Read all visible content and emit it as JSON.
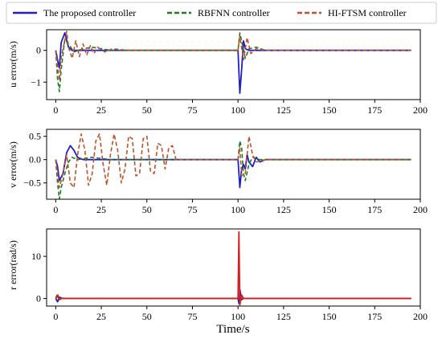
{
  "chart_data": [
    {
      "type": "line",
      "ylabel": "u error(m/s)",
      "xlabel": "",
      "xlim": [
        -5,
        200
      ],
      "ylim": [
        -1.55,
        0.65
      ],
      "xticks": [
        0,
        25,
        50,
        75,
        100,
        125,
        150,
        175,
        200
      ],
      "yticks": [
        -1,
        0
      ],
      "series": [
        {
          "name": "The proposed controller",
          "color": "#1f1fc8",
          "dash": "solid",
          "key": "u_proposed",
          "points": [
            [
              0,
              0
            ],
            [
              1,
              -0.3
            ],
            [
              2,
              -0.55
            ],
            [
              3,
              0.25
            ],
            [
              5,
              0.55
            ],
            [
              7,
              0.1
            ],
            [
              9,
              0
            ],
            [
              40,
              0
            ],
            [
              100,
              0
            ],
            [
              101,
              -1.35
            ],
            [
              102,
              -0.6
            ],
            [
              103,
              0.3
            ],
            [
              104,
              0.05
            ],
            [
              106,
              0
            ],
            [
              195,
              0
            ]
          ]
        },
        {
          "name": "RBFNN controller",
          "color": "#1e7a1e",
          "dash": "dashed",
          "key": "u_rbfnn",
          "points": [
            [
              0,
              0
            ],
            [
              1,
              -0.9
            ],
            [
              2,
              -1.3
            ],
            [
              3,
              -0.6
            ],
            [
              5,
              0.35
            ],
            [
              7,
              0.2
            ],
            [
              10,
              -0.05
            ],
            [
              15,
              0.05
            ],
            [
              20,
              0.1
            ],
            [
              30,
              0
            ],
            [
              60,
              0
            ],
            [
              100,
              0
            ],
            [
              101,
              0.55
            ],
            [
              102,
              0.3
            ],
            [
              104,
              -0.25
            ],
            [
              106,
              0.05
            ],
            [
              110,
              0.1
            ],
            [
              115,
              0
            ],
            [
              195,
              0
            ]
          ]
        },
        {
          "name": "HI-FTSM controller",
          "color": "#c0502a",
          "dash": "dashed",
          "key": "u_hiftsm",
          "points": [
            [
              0,
              0
            ],
            [
              1,
              -0.5
            ],
            [
              2,
              -0.95
            ],
            [
              3,
              -0.2
            ],
            [
              5,
              0.3
            ],
            [
              6,
              0.6
            ],
            [
              7,
              0.1
            ],
            [
              9,
              -0.25
            ],
            [
              11,
              0.3
            ],
            [
              13,
              -0.2
            ],
            [
              15,
              0.2
            ],
            [
              17,
              -0.15
            ],
            [
              19,
              0.15
            ],
            [
              21,
              -0.1
            ],
            [
              23,
              0.1
            ],
            [
              27,
              -0.05
            ],
            [
              31,
              0.05
            ],
            [
              40,
              0
            ],
            [
              100,
              0
            ],
            [
              101,
              0.45
            ],
            [
              103,
              -0.3
            ],
            [
              105,
              0.4
            ],
            [
              107,
              -0.1
            ],
            [
              110,
              0.05
            ],
            [
              115,
              0
            ],
            [
              195,
              0
            ]
          ]
        }
      ]
    },
    {
      "type": "line",
      "ylabel": "v error(m/s)",
      "xlabel": "",
      "xlim": [
        -5,
        200
      ],
      "ylim": [
        -0.85,
        0.65
      ],
      "xticks": [
        0,
        25,
        50,
        75,
        100,
        125,
        150,
        175,
        200
      ],
      "yticks": [
        -0.5,
        0.0,
        0.5
      ],
      "series": [
        {
          "name": "The proposed controller",
          "color": "#1f1fc8",
          "dash": "solid",
          "key": "v_proposed",
          "points": [
            [
              0,
              0
            ],
            [
              1,
              -0.15
            ],
            [
              2,
              -0.45
            ],
            [
              4,
              -0.3
            ],
            [
              6,
              0.15
            ],
            [
              8,
              0.3
            ],
            [
              10,
              0.2
            ],
            [
              12,
              0.05
            ],
            [
              15,
              0
            ],
            [
              40,
              0
            ],
            [
              100,
              0
            ],
            [
              101,
              -0.6
            ],
            [
              102,
              -0.2
            ],
            [
              103,
              -0.1
            ],
            [
              104,
              -0.2
            ],
            [
              105,
              0.1
            ],
            [
              106,
              -0.05
            ],
            [
              108,
              -0.15
            ],
            [
              110,
              0.05
            ],
            [
              112,
              -0.05
            ],
            [
              115,
              0
            ],
            [
              195,
              0
            ]
          ]
        },
        {
          "name": "RBFNN controller",
          "color": "#1e7a1e",
          "dash": "dashed",
          "key": "v_rbfnn",
          "points": [
            [
              0,
              0
            ],
            [
              1,
              -0.5
            ],
            [
              2,
              -0.85
            ],
            [
              3,
              -0.6
            ],
            [
              5,
              -0.3
            ],
            [
              7,
              -0.05
            ],
            [
              9,
              0.05
            ],
            [
              12,
              0
            ],
            [
              20,
              0.05
            ],
            [
              30,
              0
            ],
            [
              60,
              0
            ],
            [
              100,
              0
            ],
            [
              101,
              0.4
            ],
            [
              102,
              0.25
            ],
            [
              103,
              -0.3
            ],
            [
              104,
              -0.45
            ],
            [
              106,
              -0.1
            ],
            [
              108,
              0.05
            ],
            [
              112,
              0
            ],
            [
              195,
              0
            ]
          ]
        },
        {
          "name": "HI-FTSM controller",
          "color": "#c0502a",
          "dash": "dashed",
          "key": "v_hiftsm",
          "points": [
            [
              0,
              0
            ],
            [
              1,
              -0.3
            ],
            [
              2,
              -0.6
            ],
            [
              4,
              -0.3
            ],
            [
              6,
              0.1
            ],
            [
              8,
              -0.5
            ],
            [
              10,
              -0.6
            ],
            [
              12,
              0.1
            ],
            [
              14,
              0.55
            ],
            [
              16,
              0.2
            ],
            [
              18,
              -0.55
            ],
            [
              20,
              -0.3
            ],
            [
              22,
              0.4
            ],
            [
              24,
              0.55
            ],
            [
              26,
              -0.1
            ],
            [
              28,
              -0.55
            ],
            [
              30,
              0.1
            ],
            [
              32,
              0.55
            ],
            [
              34,
              0.2
            ],
            [
              36,
              -0.5
            ],
            [
              38,
              -0.2
            ],
            [
              40,
              0.5
            ],
            [
              42,
              0.45
            ],
            [
              44,
              -0.35
            ],
            [
              46,
              -0.3
            ],
            [
              48,
              0.45
            ],
            [
              50,
              0.5
            ],
            [
              52,
              -0.25
            ],
            [
              54,
              -0.3
            ],
            [
              56,
              0.35
            ],
            [
              58,
              0.3
            ],
            [
              60,
              -0.2
            ],
            [
              62,
              0.25
            ],
            [
              64,
              0.3
            ],
            [
              66,
              0
            ],
            [
              70,
              0
            ],
            [
              100,
              0
            ],
            [
              101,
              0.25
            ],
            [
              102,
              -0.35
            ],
            [
              104,
              -0.3
            ],
            [
              106,
              0.5
            ],
            [
              108,
              0.1
            ],
            [
              110,
              -0.05
            ],
            [
              115,
              0
            ],
            [
              195,
              0
            ]
          ]
        }
      ]
    },
    {
      "type": "line",
      "ylabel": "r error(rad/s)",
      "xlabel": "Time/s",
      "xlim": [
        -5,
        200
      ],
      "ylim": [
        -1.8,
        16.5
      ],
      "xticks": [
        0,
        25,
        50,
        75,
        100,
        125,
        150,
        175,
        200
      ],
      "yticks": [
        0,
        10
      ],
      "series": [
        {
          "name": "The proposed controller",
          "color": "#1f1fc8",
          "dash": "solid",
          "key": "r_proposed",
          "points": [
            [
              0,
              0
            ],
            [
              1,
              -0.8
            ],
            [
              2,
              0.3
            ],
            [
              4,
              0
            ],
            [
              100,
              0
            ],
            [
              100.5,
              -1.2
            ],
            [
              101,
              2.2
            ],
            [
              102,
              -0.3
            ],
            [
              103,
              0
            ],
            [
              195,
              0
            ]
          ]
        },
        {
          "name": "RBFNN controller",
          "color": "#1e7a1e",
          "dash": "dashed",
          "key": "r_rbfnn",
          "points": [
            [
              0,
              0
            ],
            [
              1,
              1.2
            ],
            [
              2,
              -0.4
            ],
            [
              3,
              0
            ],
            [
              100,
              0
            ],
            [
              100.5,
              0.8
            ],
            [
              101,
              -0.5
            ],
            [
              102,
              0
            ],
            [
              195,
              0
            ]
          ]
        },
        {
          "name": "HI-FTSM controller",
          "color": "#d42020",
          "dash": "solid",
          "key": "r_hiftsm",
          "points": [
            [
              0,
              0
            ],
            [
              1,
              0.6
            ],
            [
              2,
              -0.3
            ],
            [
              3,
              0
            ],
            [
              100,
              0
            ],
            [
              100.5,
              15.8
            ],
            [
              101,
              -1.5
            ],
            [
              102,
              0.8
            ],
            [
              103,
              0
            ],
            [
              195,
              0
            ]
          ]
        }
      ]
    }
  ],
  "legend": [
    {
      "label": "The proposed controller",
      "color": "#1f1fc8",
      "dash": "solid"
    },
    {
      "label": "RBFNN controller",
      "color": "#1e7a1e",
      "dash": "dashed"
    },
    {
      "label": "HI-FTSM controller",
      "color": "#c0502a",
      "dash": "dashed"
    }
  ],
  "tick_labels": {
    "x": [
      "0",
      "25",
      "50",
      "75",
      "100",
      "125",
      "150",
      "175",
      "200"
    ],
    "u_y": [
      "−1",
      "0"
    ],
    "v_y": [
      "−0.5",
      "0.0",
      "0.5"
    ],
    "r_y": [
      "0",
      "10"
    ]
  }
}
